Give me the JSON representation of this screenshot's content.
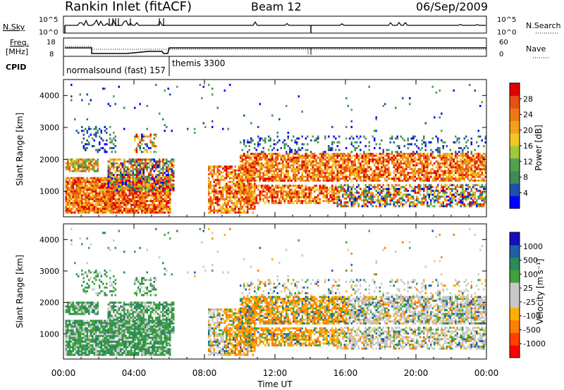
{
  "header": {
    "site": "Rankin Inlet (fitACF)",
    "beam": "Beam 12",
    "date": "06/Sep/2009"
  },
  "summary_panels": {
    "nsky_label": "N.Sky",
    "nsky_ticks": [
      "10^5",
      "10^0"
    ],
    "nsearch_label": "N.Search",
    "nsearch_ticks": [
      "10^5",
      "10^0"
    ],
    "freq_label_line1": "Freq.",
    "freq_label_line2": "[MHz]",
    "freq_ticks": [
      "18",
      "8"
    ],
    "nave_label": "Nave",
    "nave_ticks": [
      "60",
      "0"
    ],
    "cpid_label": "CPID",
    "cpid_entries": [
      {
        "text": "normalsound (fast) 157"
      },
      {
        "text": "themis 3300"
      }
    ]
  },
  "colors": {
    "power_scale": [
      "#0000ff",
      "#1f4fa8",
      "#3f8a5a",
      "#4fa04f",
      "#a0c83c",
      "#f0c81e",
      "#f0a01e",
      "#f07814",
      "#e85014",
      "#e00000"
    ],
    "velocity_scale": [
      "#ff0000",
      "#ff4000",
      "#ff8000",
      "#ffb000",
      "#c8c8c8",
      "#c8c8c8",
      "#3fa23f",
      "#2a8a5a",
      "#1f5fa8",
      "#1010c0"
    ]
  },
  "chart_data": [
    {
      "type": "heatmap",
      "ylabel": "Slant Range [km]",
      "xlabel": "",
      "y_ticks": [
        "1000",
        "2000",
        "3000",
        "4000"
      ],
      "colorbar_label": "Power [dB]",
      "colorbar_ticks": [
        "4",
        "8",
        "12",
        "16",
        "20",
        "24",
        "28"
      ]
    },
    {
      "type": "heatmap",
      "ylabel": "Slant Range [km]",
      "xlabel": "Time UT",
      "x_ticks": [
        "00:00",
        "04:00",
        "08:00",
        "12:00",
        "16:00",
        "20:00",
        "00:00"
      ],
      "y_ticks": [
        "1000",
        "2000",
        "3000",
        "4000"
      ],
      "colorbar_label": "Velocity [m s⁻¹]",
      "colorbar_ticks": [
        "1000",
        "500",
        "100",
        "25",
        "-25",
        "-100",
        "-500",
        "-1000"
      ]
    }
  ]
}
